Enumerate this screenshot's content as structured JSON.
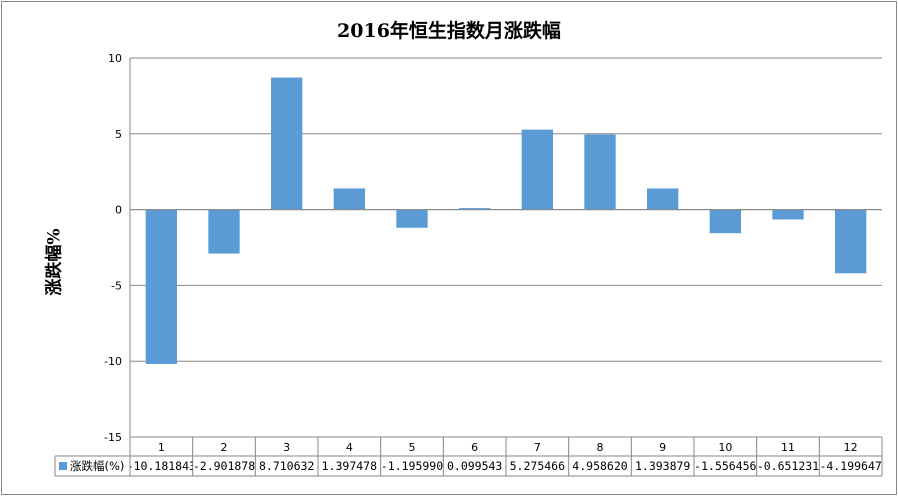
{
  "chart_data": {
    "type": "bar",
    "title": "2016年恒生指数月涨跌幅",
    "ylabel": "涨跌幅%",
    "xlabel": "",
    "ylim": [
      -15,
      10
    ],
    "yticks": [
      10,
      5,
      0,
      -5,
      -10,
      -15
    ],
    "categories": [
      "1",
      "2",
      "3",
      "4",
      "5",
      "6",
      "7",
      "8",
      "9",
      "10",
      "11",
      "12"
    ],
    "series": [
      {
        "name": "涨跌幅(%)",
        "values": [
          -10.181843,
          -2.901878,
          8.710632,
          1.397478,
          -1.19599,
          0.099543,
          5.275466,
          4.95862,
          1.393879,
          -1.556456,
          -0.651231,
          -4.199647
        ]
      }
    ],
    "data_table_text": [
      "-10.181843",
      "-2.901878",
      "8.710632",
      "1.397478",
      "-1.195990",
      "0.099543",
      "5.275466",
      "4.958620",
      "1.393879",
      "-1.556456",
      "-0.651231",
      "-4.199647"
    ],
    "grid": true,
    "legend": "data-table",
    "bar_color": "#5b9bd5"
  }
}
